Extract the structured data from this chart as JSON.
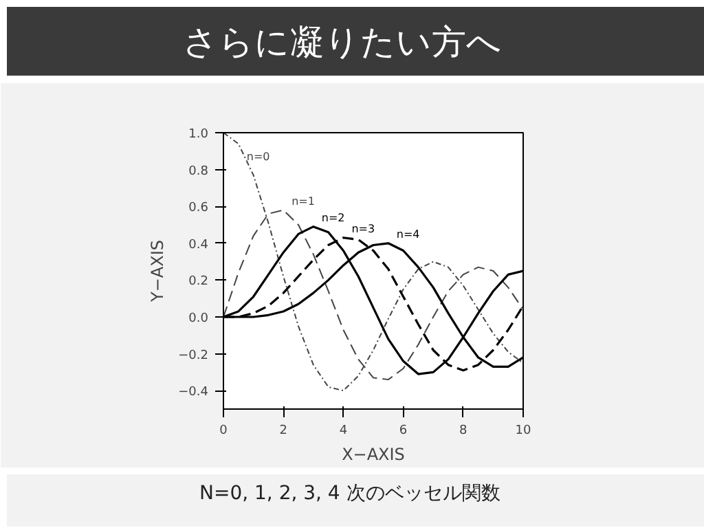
{
  "chart_data": {
    "type": "line",
    "title": "さらに凝りたい方へ",
    "xlabel": "X−AXIS",
    "ylabel": "Y−AXIS",
    "annotations": [
      "N=0, 1, 2, 3, 4 次のベッセル関数"
    ],
    "x": [
      0,
      0.5,
      1,
      1.5,
      2,
      2.5,
      3,
      3.5,
      4,
      4.5,
      5,
      5.5,
      6,
      6.5,
      7,
      7.5,
      8,
      8.5,
      9,
      9.5,
      10
    ],
    "series": [
      {
        "name": "n=0",
        "color": "#444444",
        "line_style": "dotted",
        "values": [
          1,
          0.94,
          0.77,
          0.51,
          0.22,
          -0.05,
          -0.26,
          -0.38,
          -0.4,
          -0.32,
          -0.18,
          -0.01,
          0.15,
          0.26,
          0.3,
          0.27,
          0.17,
          0.04,
          -0.09,
          -0.19,
          -0.25
        ]
      },
      {
        "name": "n=1",
        "color": "#444444",
        "line_style": "dashed",
        "values": [
          0,
          0.24,
          0.44,
          0.56,
          0.58,
          0.5,
          0.34,
          0.14,
          -0.07,
          -0.23,
          -0.33,
          -0.34,
          -0.28,
          -0.15,
          0.0,
          0.14,
          0.23,
          0.27,
          0.25,
          0.16,
          0.04
        ]
      },
      {
        "name": "n=2",
        "color": "#000000",
        "line_style": "solid",
        "values": [
          0,
          0.03,
          0.11,
          0.23,
          0.35,
          0.45,
          0.49,
          0.46,
          0.36,
          0.22,
          0.05,
          -0.12,
          -0.24,
          -0.31,
          -0.3,
          -0.23,
          -0.11,
          0.02,
          0.14,
          0.23,
          0.25
        ]
      },
      {
        "name": "n=3",
        "color": "#000000",
        "line_style": "dashed",
        "values": [
          0,
          0.0,
          0.02,
          0.06,
          0.13,
          0.22,
          0.31,
          0.39,
          0.43,
          0.42,
          0.36,
          0.26,
          0.11,
          -0.04,
          -0.18,
          -0.26,
          -0.29,
          -0.26,
          -0.18,
          -0.07,
          0.06
        ]
      },
      {
        "name": "n=4",
        "color": "#000000",
        "line_style": "solid",
        "values": [
          0,
          0,
          0.0,
          0.01,
          0.03,
          0.07,
          0.13,
          0.2,
          0.28,
          0.35,
          0.39,
          0.4,
          0.36,
          0.27,
          0.16,
          0.02,
          -0.11,
          -0.22,
          -0.27,
          -0.27,
          -0.22
        ]
      }
    ],
    "xlim": [
      0,
      10
    ],
    "xticks": [
      0,
      2,
      4,
      6,
      8,
      10
    ],
    "ylim": [
      -0.5,
      1.0
    ],
    "yticks": [
      {
        "value": -0.4,
        "label": "−0.4"
      },
      {
        "value": -0.2,
        "label": "−0.2"
      },
      {
        "value": 0,
        "label": "0.0"
      },
      0.2,
      0.4,
      0.6,
      0.8,
      {
        "value": 1,
        "label": "1.0"
      }
    ],
    "grid": false,
    "marker": "none"
  }
}
